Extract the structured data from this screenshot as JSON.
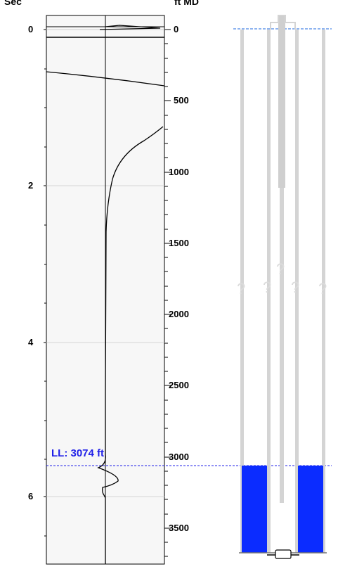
{
  "axes": {
    "left_title": "Sec",
    "right_title": "ft MD",
    "time_ticks": [
      "0",
      "2",
      "4",
      "6"
    ],
    "depth_ticks": [
      "0",
      "500",
      "1000",
      "1500",
      "2000",
      "2500",
      "3000",
      "3500"
    ]
  },
  "liquid_level": {
    "label": "LL: 3074 ft",
    "depth_ft": 3074
  },
  "wellbore": {
    "unknown_marker": "?",
    "colors": {
      "fluid": "#0b2cff",
      "tubing": "#d4d4d4",
      "level_line": "#1f1fe8"
    }
  }
}
